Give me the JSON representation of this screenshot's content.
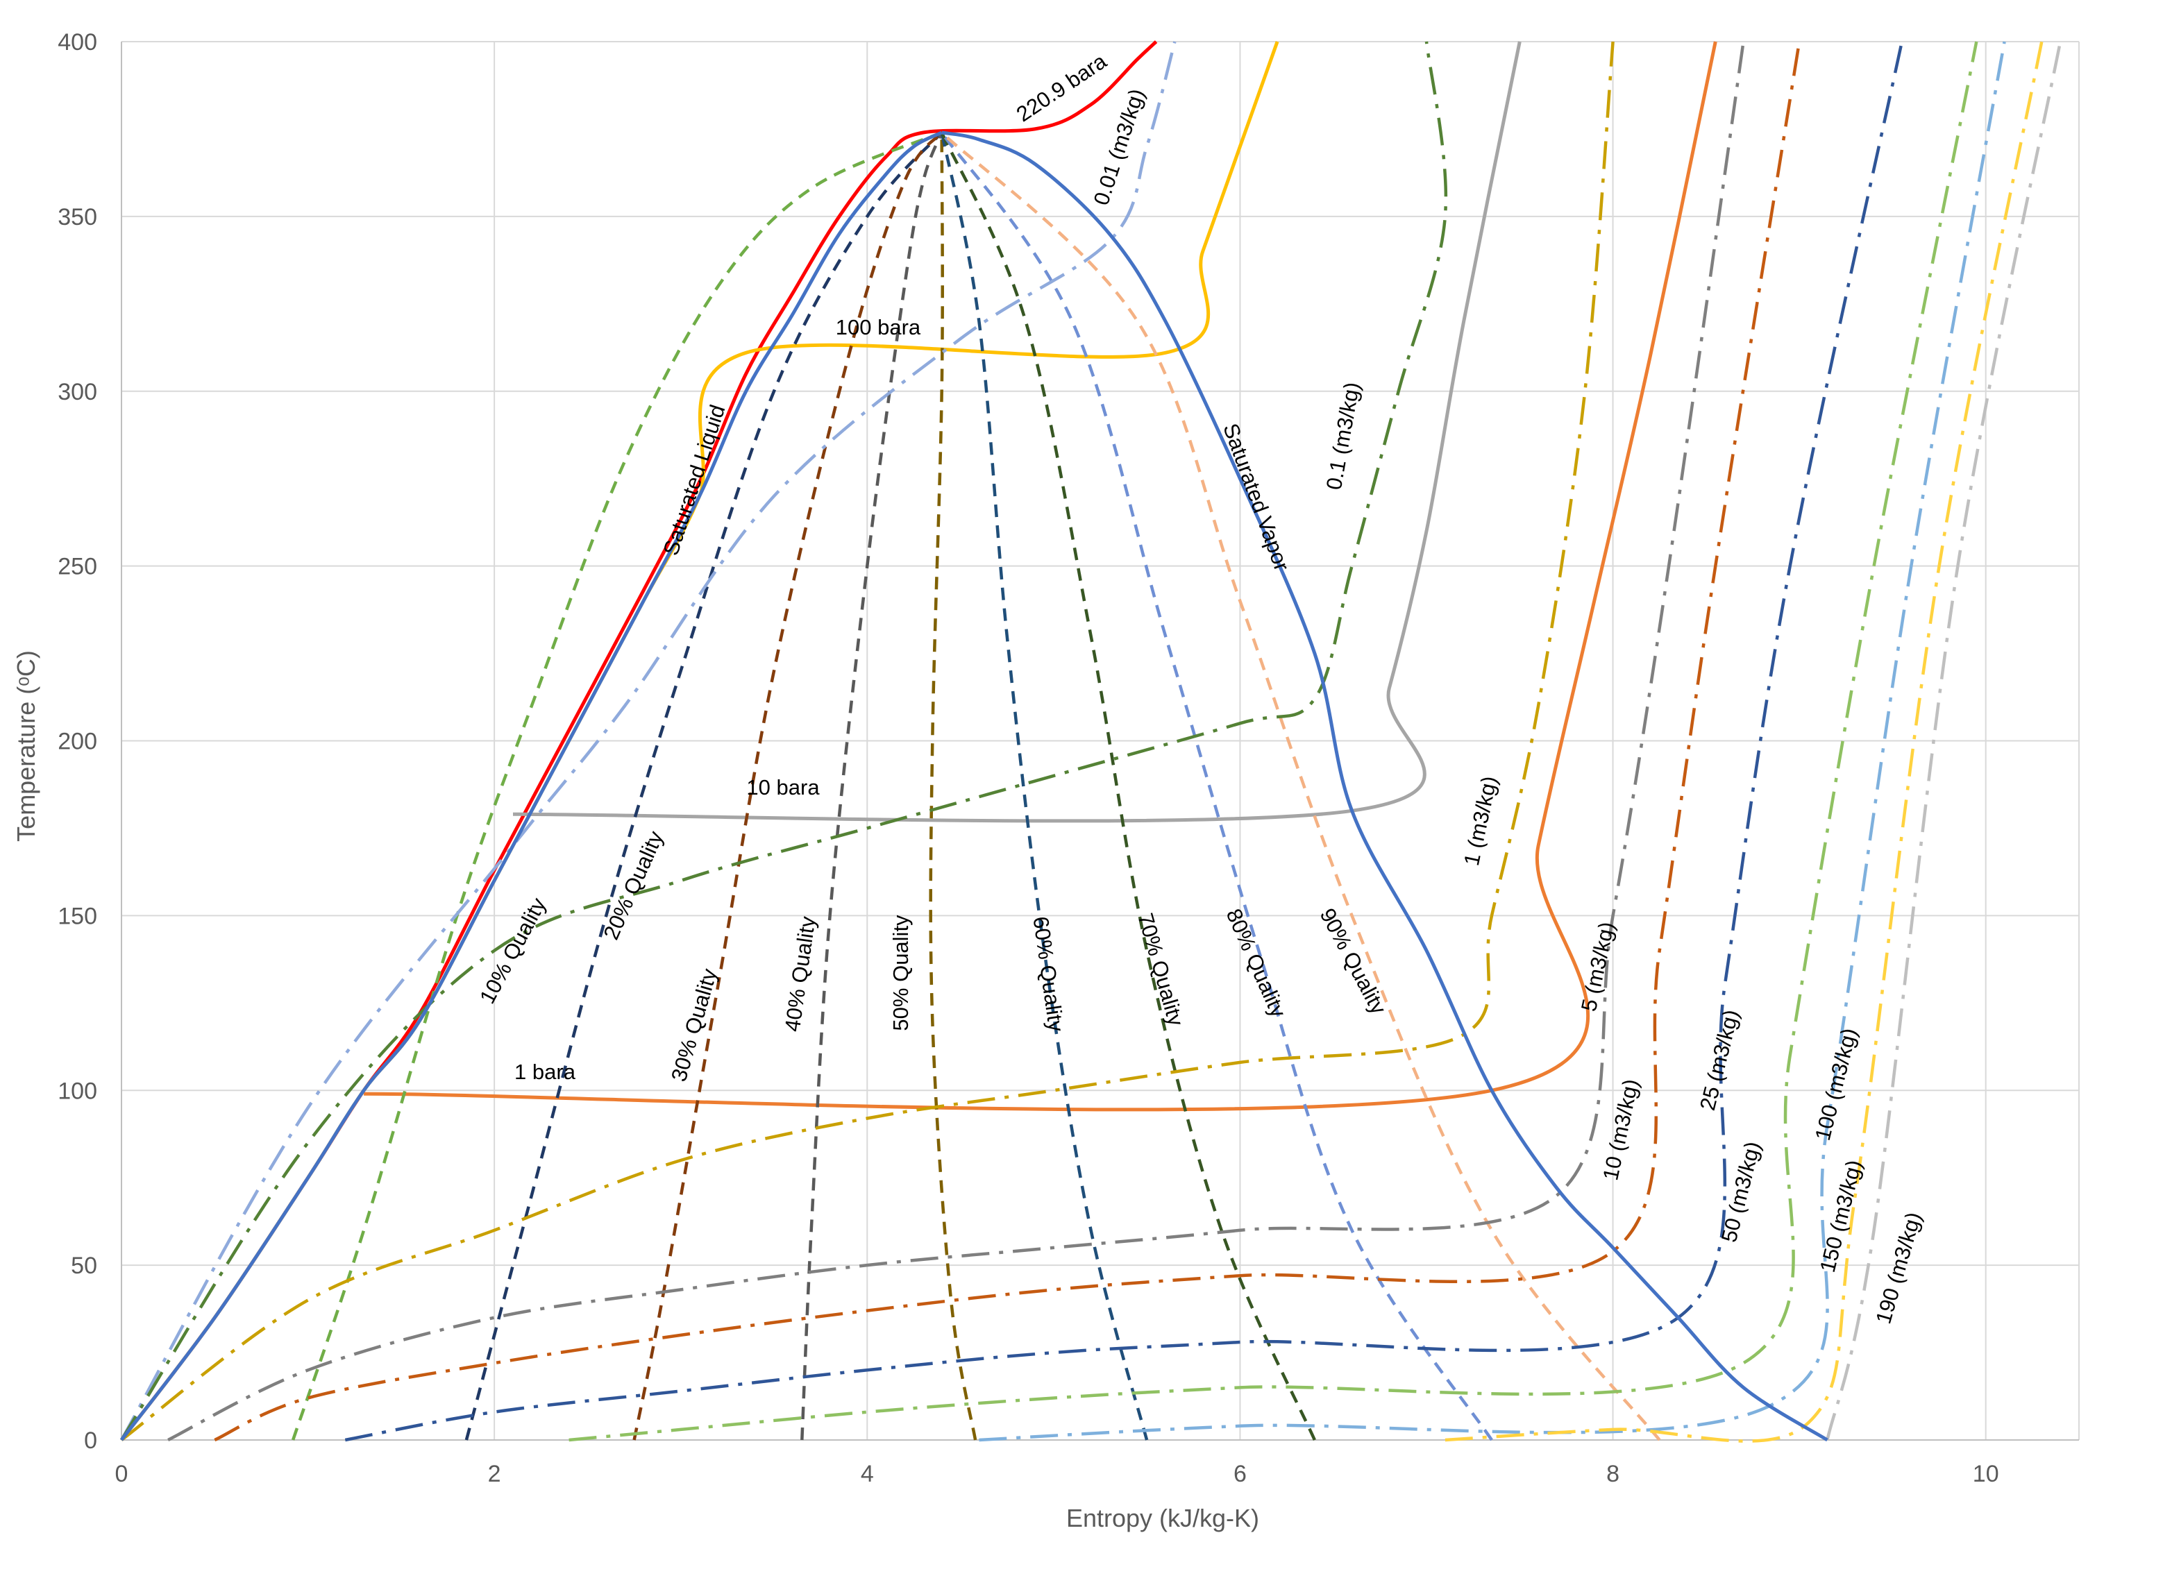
{
  "chart_data": {
    "type": "line",
    "xlabel": "Entropy (kJ/kg-K)",
    "ylabel": "Temperature (ᵒC)",
    "xlim": [
      0,
      10.5
    ],
    "ylim": [
      0,
      400
    ],
    "xticks": [
      "0",
      "2",
      "4",
      "6",
      "8",
      "10"
    ],
    "yticks": [
      "0",
      "50",
      "100",
      "150",
      "200",
      "250",
      "300",
      "350",
      "400"
    ],
    "grid": true,
    "legend": "none",
    "dome": {
      "liquid": [
        [
          0,
          0
        ],
        [
          0.5,
          35
        ],
        [
          1.0,
          75
        ],
        [
          1.3,
          100
        ],
        [
          1.6,
          120
        ],
        [
          2.0,
          160
        ],
        [
          2.4,
          200
        ],
        [
          2.8,
          240
        ],
        [
          3.1,
          270
        ],
        [
          3.35,
          300
        ],
        [
          3.6,
          322
        ],
        [
          3.85,
          345
        ],
        [
          4.1,
          362
        ],
        [
          4.25,
          370
        ],
        [
          4.4,
          374
        ]
      ],
      "vapor": [
        [
          4.4,
          374
        ],
        [
          4.6,
          372
        ],
        [
          4.9,
          365
        ],
        [
          5.3,
          345
        ],
        [
          5.6,
          320
        ],
        [
          6.0,
          275
        ],
        [
          6.4,
          225
        ],
        [
          6.6,
          180
        ],
        [
          7.0,
          140
        ],
        [
          7.35,
          100
        ],
        [
          7.7,
          72
        ],
        [
          8.0,
          55
        ],
        [
          8.35,
          35
        ],
        [
          8.7,
          15
        ],
        [
          9.15,
          0
        ]
      ]
    },
    "annotations": [
      "220.9 bara",
      "0.01 (m3/kg)",
      "100 bara",
      "Saturated Liquid",
      "Saturated Vapor",
      "0.1 (m3/kg)",
      "10 bara",
      "1 (m3/kg)",
      "10% Quality",
      "20% Quality",
      "30% Quality",
      "40% Quality",
      "50% Quality",
      "60% Quality",
      "70% Quality",
      "80% Quality",
      "90% Quality",
      "1 bara",
      "5 (m3/kg)",
      "10 (m3/kg)",
      "25 (m3/kg)",
      "50 (m3/kg)",
      "100 (m3/kg)",
      "150 (m3/kg)",
      "190 (m3/kg)"
    ],
    "series": [
      {
        "name": "220.9 bara",
        "color": "#ff0000",
        "dash": "solid",
        "points": [
          [
            0,
            0
          ],
          [
            0.5,
            35
          ],
          [
            1.0,
            75
          ],
          [
            1.3,
            100
          ],
          [
            1.6,
            122
          ],
          [
            2.0,
            163
          ],
          [
            2.4,
            203
          ],
          [
            2.8,
            243
          ],
          [
            3.1,
            274
          ],
          [
            3.35,
            305
          ],
          [
            3.6,
            328
          ],
          [
            3.85,
            350
          ],
          [
            4.1,
            367
          ],
          [
            4.3,
            374
          ],
          [
            4.9,
            375
          ],
          [
            5.2,
            382
          ],
          [
            5.45,
            395
          ],
          [
            5.55,
            400
          ]
        ]
      },
      {
        "name": "100 bara",
        "color": "#ffc000",
        "dash": "solid",
        "points": [
          [
            0,
            0
          ],
          [
            0.5,
            35
          ],
          [
            1.0,
            75
          ],
          [
            1.3,
            100
          ],
          [
            1.6,
            120
          ],
          [
            2.0,
            160
          ],
          [
            2.4,
            200
          ],
          [
            2.8,
            240
          ],
          [
            3.1,
            270
          ],
          [
            3.35,
            311
          ],
          [
            5.6,
            311
          ],
          [
            5.8,
            340
          ],
          [
            6.0,
            370
          ],
          [
            6.2,
            400
          ]
        ]
      },
      {
        "name": "10 bara",
        "color": "#a5a5a5",
        "dash": "solid",
        "points": [
          [
            2.1,
            179
          ],
          [
            6.6,
            180
          ],
          [
            6.8,
            215
          ],
          [
            7.0,
            260
          ],
          [
            7.2,
            320
          ],
          [
            7.5,
            400
          ]
        ]
      },
      {
        "name": "1 bara",
        "color": "#ed7d31",
        "dash": "solid",
        "points": [
          [
            1.3,
            99
          ],
          [
            7.35,
            100
          ],
          [
            7.6,
            170
          ],
          [
            7.9,
            240
          ],
          [
            8.2,
            310
          ],
          [
            8.55,
            400
          ]
        ]
      },
      {
        "name": "10% Quality",
        "color": "#70ad47",
        "dash": "dash",
        "points": [
          [
            0.92,
            0
          ],
          [
            1.3,
            60
          ],
          [
            1.8,
            150
          ],
          [
            2.2,
            210
          ],
          [
            2.7,
            280
          ],
          [
            3.2,
            330
          ],
          [
            3.7,
            358
          ],
          [
            4.4,
            374
          ]
        ]
      },
      {
        "name": "20% Quality",
        "color": "#1f3864",
        "dash": "dash",
        "points": [
          [
            1.85,
            0
          ],
          [
            2.2,
            70
          ],
          [
            2.6,
            150
          ],
          [
            3.0,
            220
          ],
          [
            3.5,
            300
          ],
          [
            4.0,
            350
          ],
          [
            4.4,
            374
          ]
        ]
      },
      {
        "name": "30% Quality",
        "color": "#843c0c",
        "dash": "dash",
        "points": [
          [
            2.75,
            0
          ],
          [
            2.9,
            40
          ],
          [
            3.2,
            130
          ],
          [
            3.5,
            220
          ],
          [
            3.9,
            310
          ],
          [
            4.2,
            360
          ],
          [
            4.4,
            374
          ]
        ]
      },
      {
        "name": "40% Quality",
        "color": "#595959",
        "dash": "dash",
        "points": [
          [
            3.65,
            0
          ],
          [
            3.7,
            60
          ],
          [
            3.8,
            150
          ],
          [
            4.0,
            250
          ],
          [
            4.2,
            330
          ],
          [
            4.3,
            360
          ],
          [
            4.4,
            374
          ]
        ]
      },
      {
        "name": "50% Quality",
        "color": "#7f6000",
        "dash": "dash",
        "points": [
          [
            4.58,
            0
          ],
          [
            4.45,
            40
          ],
          [
            4.35,
            120
          ],
          [
            4.35,
            200
          ],
          [
            4.4,
            300
          ],
          [
            4.4,
            374
          ]
        ]
      },
      {
        "name": "60% Quality",
        "color": "#1f4e79",
        "dash": "dash",
        "points": [
          [
            5.5,
            0
          ],
          [
            5.2,
            60
          ],
          [
            4.95,
            140
          ],
          [
            4.75,
            230
          ],
          [
            4.6,
            320
          ],
          [
            4.4,
            374
          ]
        ]
      },
      {
        "name": "70% Quality",
        "color": "#375623",
        "dash": "dash",
        "points": [
          [
            6.4,
            0
          ],
          [
            5.9,
            60
          ],
          [
            5.5,
            140
          ],
          [
            5.2,
            230
          ],
          [
            4.85,
            320
          ],
          [
            4.4,
            374
          ]
        ]
      },
      {
        "name": "80% Quality",
        "color": "#6f8fd4",
        "dash": "dash",
        "points": [
          [
            7.35,
            0
          ],
          [
            6.6,
            60
          ],
          [
            6.1,
            140
          ],
          [
            5.6,
            230
          ],
          [
            5.1,
            320
          ],
          [
            4.4,
            374
          ]
        ]
      },
      {
        "name": "90% Quality",
        "color": "#f4b183",
        "dash": "dash",
        "points": [
          [
            8.25,
            0
          ],
          [
            7.35,
            60
          ],
          [
            6.6,
            150
          ],
          [
            6.0,
            240
          ],
          [
            5.45,
            320
          ],
          [
            4.4,
            374
          ]
        ]
      },
      {
        "name": "0.01 (m3/kg)",
        "color": "#8faadc",
        "dash": "dashdot",
        "points": [
          [
            0,
            0
          ],
          [
            1.0,
            95
          ],
          [
            2.1,
            170
          ],
          [
            2.7,
            210
          ],
          [
            3.5,
            270
          ],
          [
            4.5,
            315
          ],
          [
            5.3,
            343
          ],
          [
            5.5,
            370
          ],
          [
            5.65,
            400
          ]
        ]
      },
      {
        "name": "0.1 (m3/kg)",
        "color": "#548235",
        "dash": "dashdot",
        "points": [
          [
            0,
            0
          ],
          [
            1.0,
            85
          ],
          [
            2.0,
            140
          ],
          [
            3.0,
            160
          ],
          [
            4.0,
            175
          ],
          [
            5.0,
            190
          ],
          [
            6.0,
            205
          ],
          [
            6.4,
            212
          ],
          [
            6.6,
            250
          ],
          [
            6.85,
            300
          ],
          [
            7.1,
            350
          ],
          [
            7.0,
            400
          ]
        ]
      },
      {
        "name": "1 (m3/kg)",
        "color": "#c9a000",
        "dash": "dashdot",
        "points": [
          [
            0,
            0
          ],
          [
            1.0,
            40
          ],
          [
            2.0,
            60
          ],
          [
            3.0,
            80
          ],
          [
            4.0,
            92
          ],
          [
            5.0,
            100
          ],
          [
            6.0,
            108
          ],
          [
            7.2,
            116
          ],
          [
            7.35,
            150
          ],
          [
            7.6,
            210
          ],
          [
            7.85,
            300
          ],
          [
            8.0,
            400
          ]
        ]
      },
      {
        "name": "5 (m3/kg)",
        "color": "#7f7f7f",
        "dash": "dashdot",
        "points": [
          [
            0.25,
            0
          ],
          [
            1.0,
            20
          ],
          [
            2.0,
            35
          ],
          [
            3.0,
            43
          ],
          [
            4.0,
            50
          ],
          [
            5.0,
            55
          ],
          [
            6.0,
            60
          ],
          [
            7.7,
            70
          ],
          [
            8.0,
            150
          ],
          [
            8.3,
            250
          ],
          [
            8.7,
            400
          ]
        ]
      },
      {
        "name": "10 (m3/kg)",
        "color": "#c55a11",
        "dash": "dashdot",
        "points": [
          [
            0.5,
            0
          ],
          [
            1.0,
            12
          ],
          [
            2.0,
            22
          ],
          [
            3.0,
            30
          ],
          [
            4.0,
            37
          ],
          [
            5.0,
            43
          ],
          [
            6.0,
            47
          ],
          [
            8.0,
            54
          ],
          [
            8.25,
            140
          ],
          [
            8.55,
            250
          ],
          [
            9.0,
            400
          ]
        ]
      },
      {
        "name": "25 (m3/kg)",
        "color": "#2f5597",
        "dash": "dashdot",
        "points": [
          [
            1.2,
            0
          ],
          [
            2.0,
            8
          ],
          [
            3.0,
            14
          ],
          [
            4.0,
            20
          ],
          [
            5.0,
            25
          ],
          [
            6.0,
            28
          ],
          [
            8.35,
            35
          ],
          [
            8.6,
            130
          ],
          [
            8.95,
            250
          ],
          [
            9.55,
            400
          ]
        ]
      },
      {
        "name": "50 (m3/kg)",
        "color": "#8fc162",
        "dash": "dashdot",
        "points": [
          [
            2.4,
            0
          ],
          [
            3.0,
            3
          ],
          [
            4.0,
            8
          ],
          [
            5.0,
            12
          ],
          [
            6.0,
            15
          ],
          [
            8.7,
            22
          ],
          [
            8.95,
            110
          ],
          [
            9.4,
            250
          ],
          [
            9.95,
            400
          ]
        ]
      },
      {
        "name": "100 (m3/kg)",
        "color": "#7eb0dd",
        "dash": "dashdot",
        "points": [
          [
            4.6,
            0
          ],
          [
            6.0,
            4
          ],
          [
            8.85,
            10
          ],
          [
            9.15,
            90
          ],
          [
            9.6,
            250
          ],
          [
            10.1,
            400
          ]
        ]
      },
      {
        "name": "150 (m3/kg)",
        "color": "#ffd23f",
        "dash": "dashdot",
        "points": [
          [
            7.1,
            0
          ],
          [
            8.0,
            3
          ],
          [
            9.05,
            5
          ],
          [
            9.3,
            70
          ],
          [
            9.75,
            250
          ],
          [
            10.3,
            400
          ]
        ]
      },
      {
        "name": "190 (m3/kg)",
        "color": "#bfbfbf",
        "dash": "dashdot",
        "points": [
          [
            9.15,
            0
          ],
          [
            9.4,
            60
          ],
          [
            9.85,
            250
          ],
          [
            10.4,
            400
          ]
        ]
      }
    ]
  }
}
